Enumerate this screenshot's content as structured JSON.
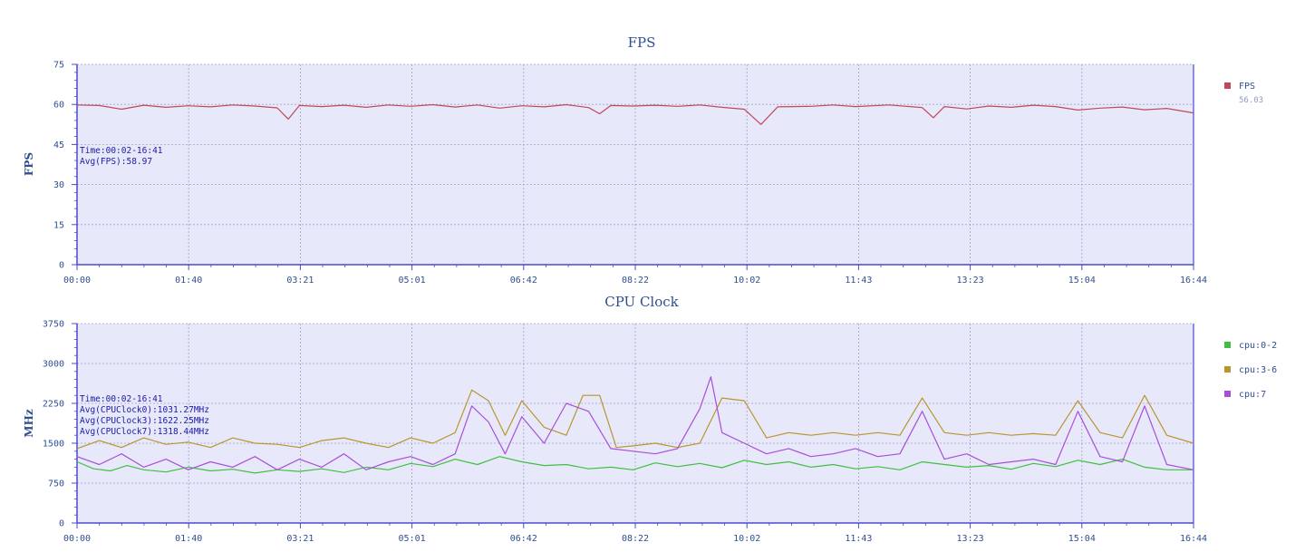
{
  "chart_data": [
    {
      "type": "line",
      "title": "FPS",
      "ylabel": "FPS",
      "ylim": [
        0,
        75
      ],
      "yticks": [
        "0",
        "15",
        "30",
        "45",
        "60",
        "75"
      ],
      "xlim_seconds": [
        0,
        1004
      ],
      "xticks": [
        "00:00",
        "01:40",
        "03:21",
        "05:01",
        "06:42",
        "08:22",
        "10:02",
        "11:43",
        "13:23",
        "15:04",
        "16:44"
      ],
      "annotation": [
        "Time:00:02-16:41",
        "Avg(FPS):58.97"
      ],
      "legend_position": "right",
      "grid": true,
      "series": [
        {
          "name": "FPS",
          "legend_value": "56.03",
          "color": "#c0485a",
          "points": [
            [
              0,
              59.8
            ],
            [
              20,
              59.6
            ],
            [
              40,
              58.2
            ],
            [
              60,
              59.7
            ],
            [
              80,
              58.9
            ],
            [
              100,
              59.5
            ],
            [
              120,
              59.1
            ],
            [
              140,
              59.8
            ],
            [
              160,
              59.4
            ],
            [
              180,
              58.7
            ],
            [
              190,
              54.5
            ],
            [
              200,
              59.6
            ],
            [
              220,
              59.2
            ],
            [
              240,
              59.7
            ],
            [
              260,
              58.9
            ],
            [
              280,
              59.8
            ],
            [
              300,
              59.3
            ],
            [
              320,
              59.9
            ],
            [
              340,
              59.0
            ],
            [
              360,
              59.8
            ],
            [
              380,
              58.6
            ],
            [
              400,
              59.5
            ],
            [
              420,
              59.1
            ],
            [
              440,
              59.9
            ],
            [
              460,
              58.8
            ],
            [
              470,
              56.5
            ],
            [
              480,
              59.6
            ],
            [
              500,
              59.4
            ],
            [
              520,
              59.7
            ],
            [
              540,
              59.3
            ],
            [
              560,
              59.8
            ],
            [
              580,
              58.9
            ],
            [
              600,
              58.2
            ],
            [
              615,
              52.5
            ],
            [
              630,
              59.1
            ],
            [
              660,
              59.3
            ],
            [
              680,
              59.8
            ],
            [
              700,
              59.2
            ],
            [
              730,
              59.8
            ],
            [
              760,
              58.8
            ],
            [
              770,
              55.0
            ],
            [
              780,
              59.2
            ],
            [
              800,
              58.3
            ],
            [
              820,
              59.4
            ],
            [
              840,
              58.9
            ],
            [
              860,
              59.7
            ],
            [
              880,
              59.2
            ],
            [
              900,
              57.9
            ],
            [
              920,
              58.6
            ],
            [
              940,
              59.0
            ],
            [
              960,
              58.0
            ],
            [
              980,
              58.5
            ],
            [
              1004,
              56.8
            ]
          ]
        }
      ]
    },
    {
      "type": "line",
      "title": "CPU Clock",
      "ylabel": "MHz",
      "ylim": [
        0,
        3750
      ],
      "yticks": [
        "0",
        "750",
        "1500",
        "2250",
        "3000",
        "3750"
      ],
      "xlim_seconds": [
        0,
        1004
      ],
      "xticks": [
        "00:00",
        "01:40",
        "03:21",
        "05:01",
        "06:42",
        "08:22",
        "10:02",
        "11:43",
        "13:23",
        "15:04",
        "16:44"
      ],
      "annotation": [
        "Time:00:02-16:41",
        "Avg(CPUClock0):1031.27MHz",
        "Avg(CPUClock3):1622.25MHz",
        "Avg(CPUClock7):1318.44MHz"
      ],
      "legend_position": "right",
      "grid": true,
      "series": [
        {
          "name": "cpu:0-2",
          "color": "#3fbf3f",
          "points": [
            [
              0,
              1150
            ],
            [
              15,
              1020
            ],
            [
              30,
              980
            ],
            [
              45,
              1080
            ],
            [
              60,
              1000
            ],
            [
              80,
              960
            ],
            [
              100,
              1050
            ],
            [
              120,
              980
            ],
            [
              140,
              1010
            ],
            [
              160,
              940
            ],
            [
              180,
              1000
            ],
            [
              200,
              970
            ],
            [
              220,
              1020
            ],
            [
              240,
              950
            ],
            [
              260,
              1050
            ],
            [
              280,
              1000
            ],
            [
              300,
              1120
            ],
            [
              320,
              1060
            ],
            [
              340,
              1200
            ],
            [
              360,
              1100
            ],
            [
              380,
              1250
            ],
            [
              400,
              1150
            ],
            [
              420,
              1080
            ],
            [
              440,
              1100
            ],
            [
              460,
              1020
            ],
            [
              480,
              1050
            ],
            [
              500,
              1000
            ],
            [
              520,
              1130
            ],
            [
              540,
              1060
            ],
            [
              560,
              1120
            ],
            [
              580,
              1040
            ],
            [
              600,
              1180
            ],
            [
              620,
              1100
            ],
            [
              640,
              1150
            ],
            [
              660,
              1050
            ],
            [
              680,
              1100
            ],
            [
              700,
              1020
            ],
            [
              720,
              1060
            ],
            [
              740,
              1000
            ],
            [
              760,
              1150
            ],
            [
              780,
              1100
            ],
            [
              800,
              1050
            ],
            [
              820,
              1080
            ],
            [
              840,
              1010
            ],
            [
              860,
              1120
            ],
            [
              880,
              1060
            ],
            [
              900,
              1180
            ],
            [
              920,
              1100
            ],
            [
              940,
              1200
            ],
            [
              960,
              1050
            ],
            [
              980,
              1000
            ],
            [
              1004,
              1000
            ]
          ]
        },
        {
          "name": "cpu:3-6",
          "color": "#b8962e",
          "points": [
            [
              0,
              1400
            ],
            [
              20,
              1550
            ],
            [
              40,
              1420
            ],
            [
              60,
              1600
            ],
            [
              80,
              1480
            ],
            [
              100,
              1520
            ],
            [
              120,
              1420
            ],
            [
              140,
              1600
            ],
            [
              160,
              1500
            ],
            [
              180,
              1480
            ],
            [
              200,
              1420
            ],
            [
              220,
              1550
            ],
            [
              240,
              1600
            ],
            [
              260,
              1500
            ],
            [
              280,
              1420
            ],
            [
              300,
              1600
            ],
            [
              320,
              1500
            ],
            [
              340,
              1700
            ],
            [
              355,
              2500
            ],
            [
              370,
              2300
            ],
            [
              385,
              1650
            ],
            [
              400,
              2300
            ],
            [
              420,
              1800
            ],
            [
              440,
              1650
            ],
            [
              455,
              2400
            ],
            [
              470,
              2400
            ],
            [
              485,
              1420
            ],
            [
              500,
              1450
            ],
            [
              520,
              1500
            ],
            [
              540,
              1420
            ],
            [
              560,
              1500
            ],
            [
              580,
              2350
            ],
            [
              600,
              2300
            ],
            [
              620,
              1600
            ],
            [
              640,
              1700
            ],
            [
              660,
              1650
            ],
            [
              680,
              1700
            ],
            [
              700,
              1650
            ],
            [
              720,
              1700
            ],
            [
              740,
              1650
            ],
            [
              760,
              2350
            ],
            [
              780,
              1700
            ],
            [
              800,
              1650
            ],
            [
              820,
              1700
            ],
            [
              840,
              1650
            ],
            [
              860,
              1680
            ],
            [
              880,
              1650
            ],
            [
              900,
              2300
            ],
            [
              920,
              1700
            ],
            [
              940,
              1600
            ],
            [
              960,
              2400
            ],
            [
              980,
              1650
            ],
            [
              1004,
              1500
            ]
          ]
        },
        {
          "name": "cpu:7",
          "color": "#a84fd8",
          "points": [
            [
              0,
              1250
            ],
            [
              20,
              1100
            ],
            [
              40,
              1300
            ],
            [
              60,
              1050
            ],
            [
              80,
              1200
            ],
            [
              100,
              1000
            ],
            [
              120,
              1150
            ],
            [
              140,
              1050
            ],
            [
              160,
              1250
            ],
            [
              180,
              1000
            ],
            [
              200,
              1200
            ],
            [
              220,
              1050
            ],
            [
              240,
              1300
            ],
            [
              260,
              1000
            ],
            [
              280,
              1150
            ],
            [
              300,
              1250
            ],
            [
              320,
              1100
            ],
            [
              340,
              1300
            ],
            [
              355,
              2200
            ],
            [
              370,
              1900
            ],
            [
              385,
              1300
            ],
            [
              400,
              2000
            ],
            [
              420,
              1500
            ],
            [
              440,
              2250
            ],
            [
              460,
              2100
            ],
            [
              480,
              1400
            ],
            [
              500,
              1350
            ],
            [
              520,
              1300
            ],
            [
              540,
              1400
            ],
            [
              560,
              2150
            ],
            [
              570,
              2750
            ],
            [
              580,
              1700
            ],
            [
              600,
              1500
            ],
            [
              620,
              1300
            ],
            [
              640,
              1400
            ],
            [
              660,
              1250
            ],
            [
              680,
              1300
            ],
            [
              700,
              1400
            ],
            [
              720,
              1250
            ],
            [
              740,
              1300
            ],
            [
              760,
              2100
            ],
            [
              780,
              1200
            ],
            [
              800,
              1300
            ],
            [
              820,
              1100
            ],
            [
              840,
              1150
            ],
            [
              860,
              1200
            ],
            [
              880,
              1100
            ],
            [
              900,
              2100
            ],
            [
              920,
              1250
            ],
            [
              940,
              1150
            ],
            [
              960,
              2200
            ],
            [
              980,
              1100
            ],
            [
              1004,
              1000
            ]
          ]
        }
      ]
    }
  ]
}
